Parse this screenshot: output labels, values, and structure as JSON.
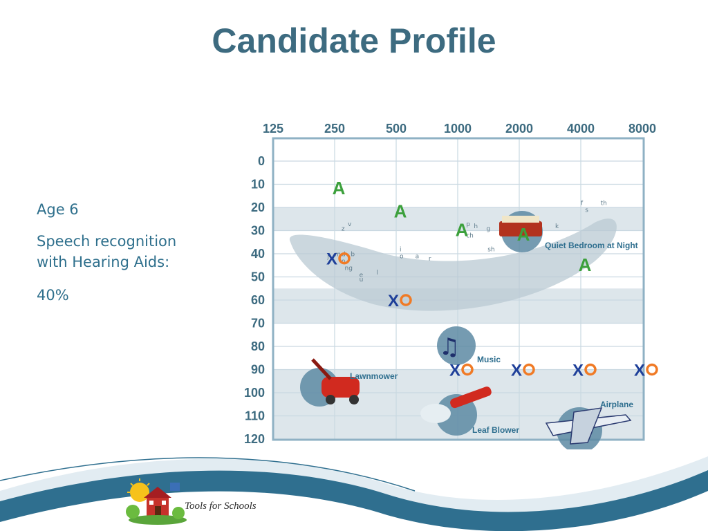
{
  "slide": {
    "title": "Candidate Profile",
    "bullets": [
      "Age 6",
      "Speech recognition\nwith Hearing Aids:",
      "40%"
    ]
  },
  "logo_text": "Tools for Schools",
  "colors": {
    "title": "#3d6b80",
    "text": "#2e6f8c",
    "grid_border": "#8fb1c4",
    "band": "#dde6eb",
    "speech_banana": "#b9c9d3",
    "aided": "#3ca03c",
    "x_mark": "#1e3f99",
    "o_mark": "#f07a25",
    "wave_dark": "#2f6f8f",
    "wave_light": "#cfe0ea"
  },
  "chart_data": {
    "type": "scatter",
    "title": "",
    "x_labels": [
      "125",
      "250",
      "500",
      "1000",
      "2000",
      "4000",
      "8000"
    ],
    "y_labels": [
      "0",
      "10",
      "20",
      "30",
      "40",
      "50",
      "60",
      "70",
      "80",
      "90",
      "100",
      "110",
      "120"
    ],
    "xscale": "log2",
    "ylim": [
      0,
      120
    ],
    "y_inverted": true,
    "series": [
      {
        "marker": "A",
        "color": "#3ca03c",
        "points": [
          {
            "x": 250,
            "y": 12
          },
          {
            "x": 500,
            "y": 22
          },
          {
            "x": 1000,
            "y": 30
          },
          {
            "x": 2000,
            "y": 32
          },
          {
            "x": 4000,
            "y": 45
          }
        ]
      },
      {
        "marker": "X",
        "color": "#1e3f99",
        "points": [
          {
            "x": 250,
            "y": 42
          },
          {
            "x": 500,
            "y": 60
          },
          {
            "x": 1000,
            "y": 90
          },
          {
            "x": 2000,
            "y": 90
          },
          {
            "x": 4000,
            "y": 90
          },
          {
            "x": 8000,
            "y": 90
          }
        ]
      },
      {
        "marker": "O",
        "color": "#f07a25",
        "points": [
          {
            "x": 250,
            "y": 42
          },
          {
            "x": 500,
            "y": 60
          },
          {
            "x": 1000,
            "y": 90
          },
          {
            "x": 2000,
            "y": 90
          },
          {
            "x": 4000,
            "y": 90
          },
          {
            "x": 8000,
            "y": 90
          }
        ]
      }
    ],
    "speech_sounds": [
      {
        "text": "z",
        "x": 270,
        "y": 30
      },
      {
        "text": "v",
        "x": 290,
        "y": 28
      },
      {
        "text": "j",
        "x": 230,
        "y": 42
      },
      {
        "text": "m",
        "x": 250,
        "y": 41
      },
      {
        "text": "d",
        "x": 270,
        "y": 41
      },
      {
        "text": "b",
        "x": 300,
        "y": 41
      },
      {
        "text": "n",
        "x": 270,
        "y": 44
      },
      {
        "text": "ng",
        "x": 280,
        "y": 47
      },
      {
        "text": "e",
        "x": 330,
        "y": 50
      },
      {
        "text": "l",
        "x": 400,
        "y": 49
      },
      {
        "text": "u",
        "x": 330,
        "y": 52
      },
      {
        "text": "i",
        "x": 520,
        "y": 39
      },
      {
        "text": "o",
        "x": 520,
        "y": 42
      },
      {
        "text": "a",
        "x": 620,
        "y": 42
      },
      {
        "text": "r",
        "x": 720,
        "y": 43
      },
      {
        "text": "p",
        "x": 1100,
        "y": 28
      },
      {
        "text": "h",
        "x": 1200,
        "y": 29
      },
      {
        "text": "g",
        "x": 1380,
        "y": 30
      },
      {
        "text": "ch",
        "x": 1100,
        "y": 33
      },
      {
        "text": "sh",
        "x": 1400,
        "y": 39
      },
      {
        "text": "k",
        "x": 3000,
        "y": 29
      },
      {
        "text": "f",
        "x": 4000,
        "y": 19
      },
      {
        "text": "th",
        "x": 5000,
        "y": 19
      },
      {
        "text": "s",
        "x": 4200,
        "y": 22
      }
    ],
    "sound_labels": [
      {
        "text": "Quiet Bedroom at Night",
        "x": 3200,
        "y": 36,
        "icon": "bedroom-icon"
      },
      {
        "text": "Music",
        "x": 1680,
        "y": 86,
        "icon": "music-notes-icon"
      },
      {
        "text": "Lawnmower",
        "x": 330,
        "y": 94,
        "icon": "lawnmower-icon"
      },
      {
        "text": "Leaf Blower",
        "x": 1600,
        "y": 114,
        "icon": "leaf-blower-icon"
      },
      {
        "text": "Airplane",
        "x": 4800,
        "y": 106,
        "icon": "airplane-icon"
      }
    ]
  }
}
